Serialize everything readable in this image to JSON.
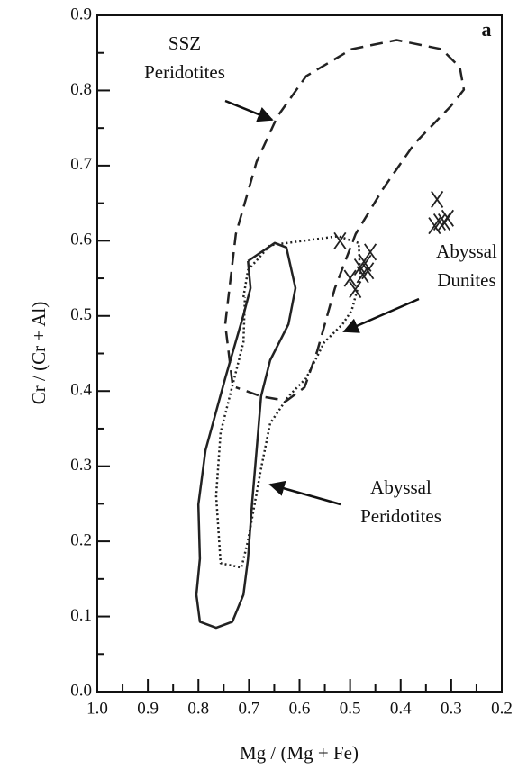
{
  "chart_data": {
    "type": "scatter",
    "panel_label": "a",
    "xlabel": "Mg / (Mg + Fe)",
    "ylabel": "Cr / (Cr + Al)",
    "xlim": [
      1.0,
      0.2
    ],
    "ylim": [
      0,
      0.9
    ],
    "xticks": [
      {
        "value": 1,
        "label": "1.0"
      },
      0.9,
      0.8,
      0.7,
      0.6,
      0.5,
      0.4,
      0.3,
      0.2
    ],
    "yticks": [
      {
        "value": 0,
        "label": "0.0"
      },
      0.1,
      0.2,
      0.3,
      0.4,
      0.5,
      0.6,
      0.7,
      0.8,
      0.9
    ],
    "xminorticks": [
      0.95,
      0.85,
      0.75,
      0.65,
      0.55,
      0.45,
      0.35,
      0.25
    ],
    "yminorticks": [
      0.05,
      0.15,
      0.25,
      0.35,
      0.45,
      0.55,
      0.65,
      0.75,
      0.85
    ],
    "color": "#222222",
    "series": [
      {
        "x": [
          0.52,
          0.5,
          0.49,
          0.48,
          0.475,
          0.47,
          0.46,
          0.465,
          0.328,
          0.333,
          0.323,
          0.314,
          0.307
        ],
        "values": [
          0.6,
          0.55,
          0.535,
          0.565,
          0.555,
          0.57,
          0.585,
          0.56,
          0.655,
          0.62,
          0.625,
          0.625,
          0.63
        ]
      }
    ],
    "fields": [
      {
        "label": [
          "SSZ",
          "Peridotites"
        ],
        "style": "dashed",
        "x": [
          0.733,
          0.747,
          0.726,
          0.685,
          0.644,
          0.587,
          0.497,
          0.408,
          0.319,
          0.283,
          0.275,
          0.301,
          0.373,
          0.435,
          0.489,
          0.53,
          0.565,
          0.59,
          0.626,
          0.676,
          0.726
        ],
        "y": [
          0.411,
          0.489,
          0.609,
          0.705,
          0.765,
          0.819,
          0.855,
          0.867,
          0.855,
          0.831,
          0.801,
          0.779,
          0.729,
          0.669,
          0.609,
          0.537,
          0.453,
          0.405,
          0.387,
          0.393,
          0.405
        ]
      },
      {
        "label": [
          "Abyssal",
          "Dunites"
        ],
        "style": "dotted",
        "x": [
          0.711,
          0.702,
          0.658,
          0.524,
          0.483,
          0.48,
          0.497,
          0.515,
          0.551,
          0.587,
          0.622,
          0.658,
          0.676,
          0.702,
          0.715,
          0.756,
          0.765,
          0.756,
          0.729,
          0.711,
          0.708
        ],
        "y": [
          0.525,
          0.561,
          0.594,
          0.606,
          0.597,
          0.549,
          0.507,
          0.489,
          0.465,
          0.417,
          0.393,
          0.357,
          0.297,
          0.201,
          0.165,
          0.171,
          0.261,
          0.345,
          0.417,
          0.465,
          0.525
        ]
      },
      {
        "label": [
          "Abyssal",
          "Peridotites"
        ],
        "style": "solid",
        "x": [
          0.702,
          0.649,
          0.626,
          0.608,
          0.622,
          0.658,
          0.676,
          0.685,
          0.694,
          0.702,
          0.711,
          0.733,
          0.765,
          0.797,
          0.804,
          0.797,
          0.8,
          0.786,
          0.747,
          0.711,
          0.697,
          0.702
        ],
        "y": [
          0.573,
          0.597,
          0.591,
          0.537,
          0.489,
          0.441,
          0.393,
          0.321,
          0.249,
          0.177,
          0.129,
          0.093,
          0.085,
          0.093,
          0.129,
          0.177,
          0.249,
          0.321,
          0.417,
          0.501,
          0.537,
          0.573
        ]
      }
    ]
  }
}
